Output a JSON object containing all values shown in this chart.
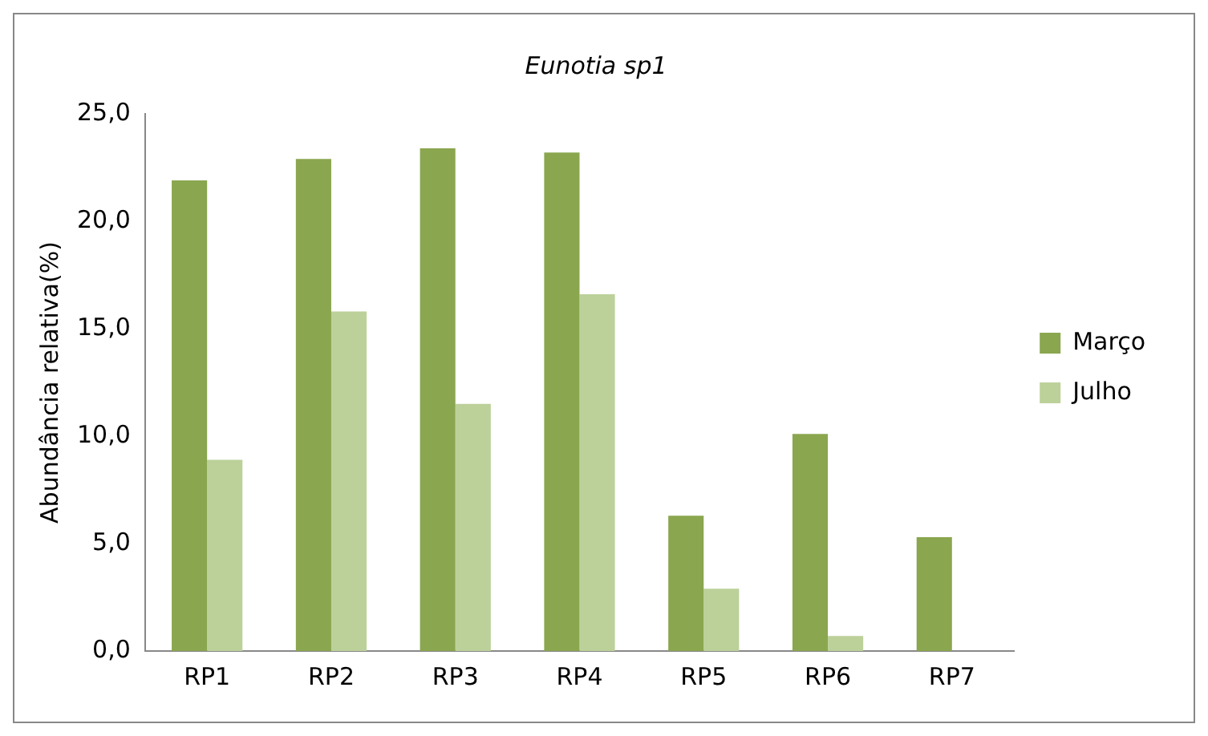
{
  "chart_data": {
    "type": "bar",
    "title": "Eunotia sp1",
    "ylabel": "Abundância relativa(%)",
    "categories": [
      "RP1",
      "RP2",
      "RP3",
      "RP4",
      "RP5",
      "RP6",
      "RP7"
    ],
    "series": [
      {
        "name": "Março",
        "color": "#8aa64f",
        "values": [
          21.9,
          22.9,
          23.4,
          23.2,
          6.3,
          10.1,
          5.3
        ]
      },
      {
        "name": "Julho",
        "color": "#bcd19a",
        "values": [
          8.9,
          15.8,
          11.5,
          16.6,
          2.9,
          0.7,
          0
        ]
      }
    ],
    "ylim": [
      0,
      25
    ],
    "yticks": [
      {
        "value": 0,
        "label": "0,0"
      },
      {
        "value": 5,
        "label": "5,0"
      },
      {
        "value": 10,
        "label": "10,0"
      },
      {
        "value": 15,
        "label": "15,0"
      },
      {
        "value": 20,
        "label": "20,0"
      },
      {
        "value": 25,
        "label": "25,0"
      }
    ],
    "grid": false,
    "legend": "right"
  }
}
